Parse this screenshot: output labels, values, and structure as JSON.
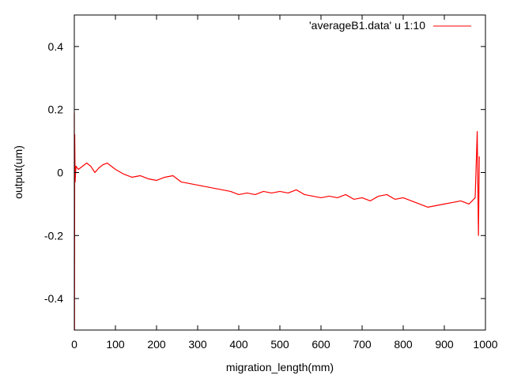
{
  "chart_data": {
    "type": "line",
    "title": "",
    "xlabel": "migration_length(mm)",
    "ylabel": "output(um)",
    "xlim": [
      0,
      1000
    ],
    "ylim": [
      -0.5,
      0.5
    ],
    "x_ticks": [
      0,
      100,
      200,
      300,
      400,
      500,
      600,
      700,
      800,
      900,
      1000
    ],
    "x_tick_labels": [
      "0",
      "100",
      "200",
      "300",
      "400",
      "500",
      "600",
      "700",
      "800",
      "900",
      "1000"
    ],
    "y_ticks": [
      -0.4,
      -0.2,
      0,
      0.2,
      0.4
    ],
    "y_tick_labels": [
      "-0.4",
      "-0.2",
      "0",
      "0.2",
      "0.4"
    ],
    "grid": false,
    "legend_position": "top-right",
    "series": [
      {
        "name": "'averageB1.data' u 1:10",
        "color": "#ff0000",
        "x": [
          0,
          0.5,
          1,
          2,
          4,
          10,
          20,
          30,
          40,
          50,
          60,
          70,
          80,
          90,
          100,
          120,
          140,
          160,
          180,
          200,
          220,
          240,
          260,
          280,
          300,
          320,
          340,
          360,
          380,
          400,
          420,
          440,
          460,
          480,
          500,
          520,
          540,
          560,
          580,
          600,
          620,
          640,
          660,
          680,
          700,
          720,
          740,
          760,
          780,
          800,
          820,
          840,
          860,
          880,
          900,
          920,
          940,
          960,
          975,
          980,
          983,
          985
        ],
        "y": [
          0.19,
          -0.5,
          0.12,
          -0.03,
          0.02,
          0.01,
          0.02,
          0.03,
          0.02,
          0.0,
          0.015,
          0.025,
          0.03,
          0.02,
          0.01,
          -0.005,
          -0.015,
          -0.01,
          -0.02,
          -0.025,
          -0.015,
          -0.01,
          -0.03,
          -0.035,
          -0.04,
          -0.045,
          -0.05,
          -0.055,
          -0.06,
          -0.07,
          -0.065,
          -0.07,
          -0.06,
          -0.065,
          -0.06,
          -0.065,
          -0.055,
          -0.07,
          -0.075,
          -0.08,
          -0.075,
          -0.08,
          -0.07,
          -0.085,
          -0.08,
          -0.09,
          -0.075,
          -0.07,
          -0.085,
          -0.08,
          -0.09,
          -0.1,
          -0.11,
          -0.105,
          -0.1,
          -0.095,
          -0.09,
          -0.1,
          -0.08,
          0.13,
          -0.2,
          0.05
        ]
      }
    ]
  }
}
